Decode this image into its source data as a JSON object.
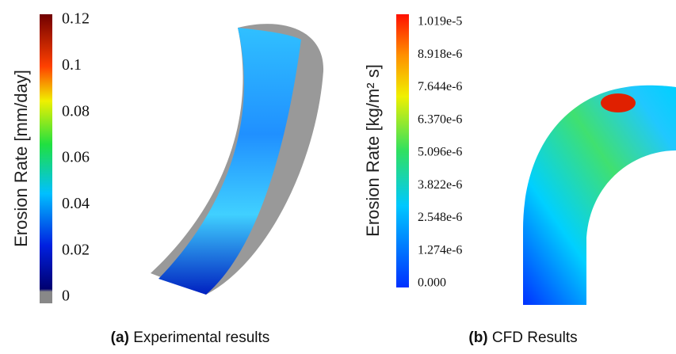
{
  "panels": [
    {
      "caption_label": "(a)",
      "caption_text": "Experimental results",
      "colorbar": {
        "label": "Erosion Rate [mm/day]",
        "ticks": [
          "0.12",
          "0.1",
          "0.08",
          "0.06",
          "0.04",
          "0.02",
          "0"
        ]
      }
    },
    {
      "caption_label": "(b)",
      "caption_text": "CFD Results",
      "colorbar": {
        "label": "Erosion Rate  [kg/m² s]",
        "ticks": [
          "1.019e-5",
          "8.918e-6",
          "7.644e-6",
          "6.370e-6",
          "5.096e-6",
          "3.822e-6",
          "2.548e-6",
          "1.274e-6",
          "0.000"
        ]
      }
    }
  ]
}
